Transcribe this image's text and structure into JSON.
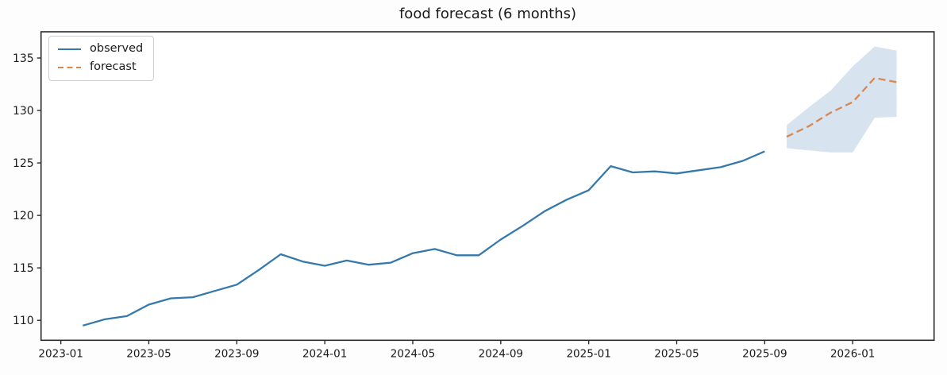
{
  "chart_data": {
    "type": "line",
    "title": "food forecast (6 months)",
    "xlabel": "",
    "ylabel": "",
    "grid": false,
    "legend": {
      "position": "upper-left",
      "entries": [
        "observed",
        "forecast"
      ]
    },
    "x_ticks": [
      "2023-01",
      "2023-05",
      "2023-09",
      "2024-01",
      "2024-05",
      "2024-09",
      "2025-01",
      "2025-05",
      "2025-09",
      "2026-01"
    ],
    "y_ticks": [
      110,
      115,
      120,
      125,
      130,
      135
    ],
    "ylim": [
      108.1,
      137.5
    ],
    "xlim_months_from_2023_01": [
      -0.9,
      39.7
    ],
    "series": [
      {
        "name": "observed",
        "line_style": "solid",
        "color": "#3579ac",
        "x": [
          "2023-02",
          "2023-03",
          "2023-04",
          "2023-05",
          "2023-06",
          "2023-07",
          "2023-08",
          "2023-09",
          "2023-10",
          "2023-11",
          "2023-12",
          "2024-01",
          "2024-02",
          "2024-03",
          "2024-04",
          "2024-05",
          "2024-06",
          "2024-07",
          "2024-08",
          "2024-09",
          "2024-10",
          "2024-11",
          "2024-12",
          "2025-01",
          "2025-02",
          "2025-03",
          "2025-04",
          "2025-05",
          "2025-06",
          "2025-07",
          "2025-08",
          "2025-09"
        ],
        "values": [
          109.5,
          110.1,
          110.4,
          111.5,
          112.1,
          112.2,
          112.8,
          113.4,
          114.8,
          116.3,
          115.6,
          115.2,
          115.7,
          115.3,
          115.5,
          116.4,
          116.8,
          116.2,
          116.2,
          117.7,
          119.0,
          120.4,
          121.5,
          122.4,
          124.7,
          124.1,
          124.2,
          124.0,
          124.3,
          124.6,
          125.2,
          126.1
        ]
      },
      {
        "name": "forecast",
        "line_style": "dashed",
        "color": "#d9864f",
        "x": [
          "2025-10",
          "2025-11",
          "2025-12",
          "2026-01",
          "2026-02",
          "2026-03"
        ],
        "values": [
          127.5,
          128.5,
          129.8,
          130.8,
          133.1,
          132.7
        ]
      }
    ],
    "confidence_band": {
      "name": "forecast-confidence-interval",
      "color": "#d7e4f0",
      "x": [
        "2025-10",
        "2025-11",
        "2025-12",
        "2026-01",
        "2026-02",
        "2026-03"
      ],
      "lower": [
        126.4,
        126.2,
        126.0,
        126.0,
        129.3,
        129.4
      ],
      "upper": [
        128.6,
        130.3,
        131.9,
        134.2,
        136.1,
        135.7
      ]
    }
  },
  "colors": {
    "background": "#fdfdfd",
    "plot_background": "#ffffff",
    "spine": "#2b2b2b",
    "tick_label": "#1a1a1a",
    "title": "#1c1c1c"
  }
}
